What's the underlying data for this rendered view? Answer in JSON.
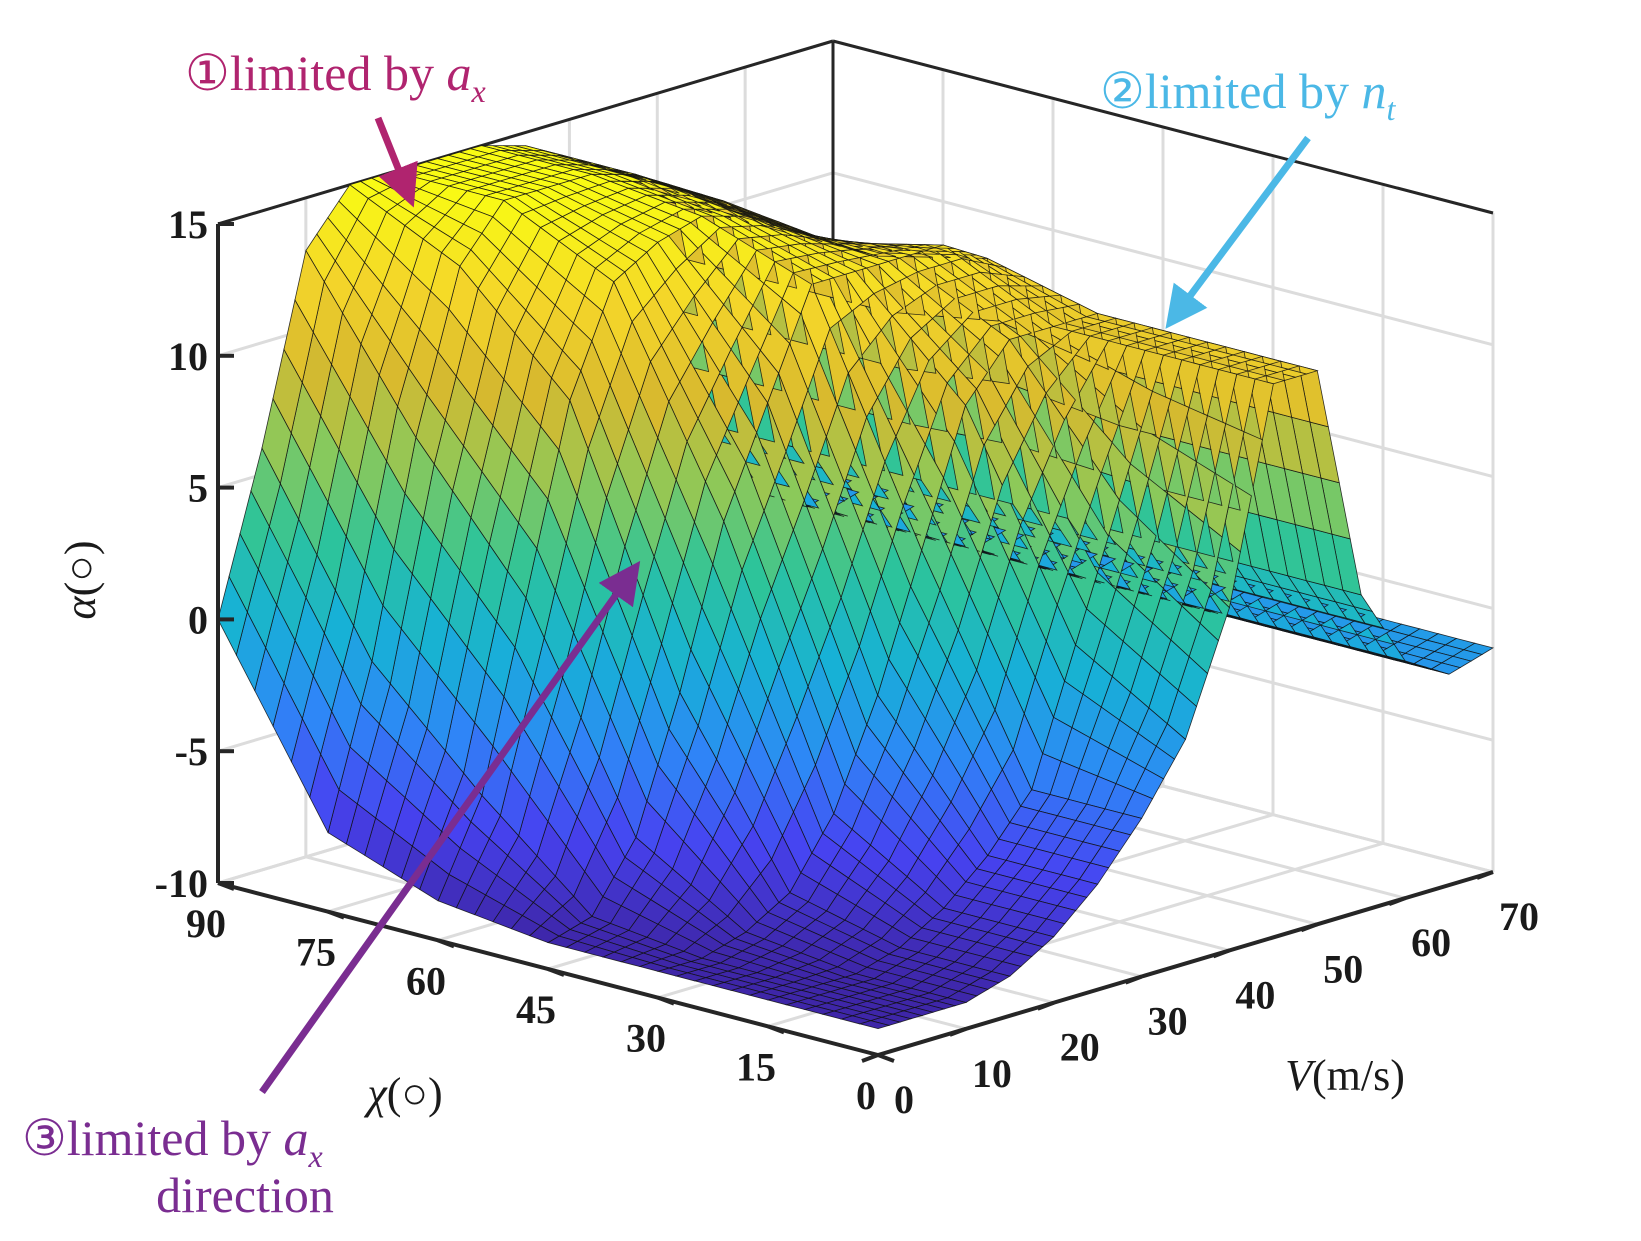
{
  "chart_data": {
    "type": "surface3d",
    "title": "",
    "xlabel": {
      "var": "V",
      "unit": "(m/s)"
    },
    "ylabel": {
      "var": "χ",
      "unit": "(○)"
    },
    "zlabel": {
      "var": "α",
      "unit": "(○)"
    },
    "xlim": [
      0,
      70
    ],
    "ylim": [
      0,
      90
    ],
    "zlim": [
      -10,
      15
    ],
    "x_ticks": [
      "0",
      "10",
      "20",
      "30",
      "40",
      "50",
      "60",
      "70"
    ],
    "y_ticks": [
      "0",
      "15",
      "30",
      "45",
      "60",
      "75",
      "90"
    ],
    "z_ticks": [
      "-10",
      "-5",
      "0",
      "5",
      "10",
      "15"
    ],
    "grid": true,
    "colormap": "parula",
    "colormap_colors": [
      "#3e26a8",
      "#4743f1",
      "#2e87f7",
      "#17b1d6",
      "#2dc49a",
      "#8bc95a",
      "#d8b92e",
      "#f4d52a",
      "#f9fb14"
    ],
    "surface_samples": {
      "V_values": [
        0,
        5,
        10,
        15,
        20,
        25,
        30,
        35,
        40,
        45,
        50,
        55,
        60,
        65,
        70
      ],
      "chi_values": [
        0,
        15,
        30,
        45,
        60,
        75,
        90
      ],
      "alpha_by_chi": {
        "0": [
          -9,
          -9,
          -9,
          -8.5,
          -7.5,
          -6,
          -4,
          -1.5,
          3,
          11,
          11,
          2,
          -1,
          -2,
          -1.5
        ],
        "15": [
          -9,
          -9,
          -9,
          -8.5,
          -7.5,
          -6,
          -4,
          1,
          6,
          11,
          11,
          2,
          -1,
          -2,
          -1.5
        ],
        "30": [
          -9,
          -9,
          -8.5,
          -7.5,
          -5,
          -1,
          4,
          9,
          11,
          11,
          11,
          2,
          -1,
          -2,
          -1.5
        ],
        "45": [
          -9,
          -8.5,
          -6,
          -1,
          5,
          9,
          13,
          13,
          13,
          13,
          12,
          2,
          -1,
          -2,
          -1.5
        ],
        "60": [
          -8.5,
          -5,
          2,
          9,
          13,
          14,
          14.5,
          14,
          13,
          12,
          11,
          2,
          -1,
          -2,
          -1.5
        ],
        "75": [
          -7,
          -1,
          7,
          13,
          15,
          15,
          15,
          14.5,
          13.5,
          12.5,
          11,
          2,
          -1,
          -2,
          -1.5
        ],
        "90": [
          0,
          6,
          13,
          15,
          15,
          15,
          15,
          14.5,
          13.5,
          12.5,
          11,
          2,
          -1,
          -2,
          -1.5
        ]
      }
    },
    "annotations": [
      {
        "id": "a1",
        "marker": "①",
        "text": "limited by ",
        "var": "a",
        "sub": "x",
        "color": "#b0246f"
      },
      {
        "id": "a2",
        "marker": "②",
        "text": "limited by ",
        "var": "n",
        "sub": "t",
        "color": "#4bb8e6"
      },
      {
        "id": "a3",
        "marker": "③",
        "text": "limited by ",
        "var": "a",
        "sub": "x",
        "line2": "direction",
        "color": "#7a2d91"
      }
    ]
  }
}
